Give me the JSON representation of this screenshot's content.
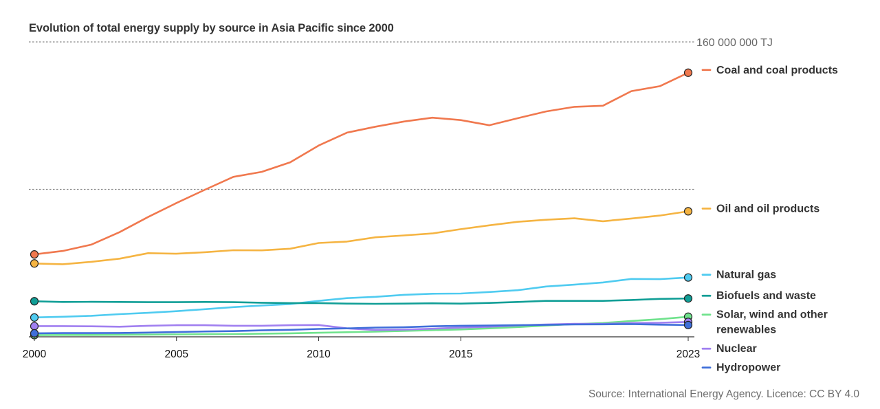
{
  "chart_data": {
    "type": "line",
    "title": "Evolution of total energy supply by source in Asia Pacific since 2000",
    "y_unit": "TJ",
    "y_max_label": "160 000 000 TJ",
    "ylim": [
      0,
      160000000
    ],
    "xlim": [
      2000,
      2023
    ],
    "x_ticks": [
      "2000",
      "2005",
      "2010",
      "2015",
      "2023"
    ],
    "grid": "horizontal dotted lines at 80 000 000 and 160 000 000",
    "legend": "right, labels beside line ends",
    "x": [
      2000,
      2001,
      2002,
      2003,
      2004,
      2005,
      2006,
      2007,
      2008,
      2009,
      2010,
      2011,
      2012,
      2013,
      2014,
      2015,
      2016,
      2017,
      2018,
      2019,
      2020,
      2021,
      2022,
      2023
    ],
    "series": [
      {
        "name": "Coal and coal products",
        "color": "#f0784e",
        "values": [
          44700000,
          46600000,
          50000000,
          56800000,
          65000000,
          72600000,
          79800000,
          86800000,
          89500000,
          94700000,
          103800000,
          110800000,
          114000000,
          116800000,
          118900000,
          117600000,
          114800000,
          118600000,
          122300000,
          124800000,
          125400000,
          133300000,
          136000000,
          143300000
        ]
      },
      {
        "name": "Oil and oil products",
        "color": "#f5b442",
        "values": [
          39800000,
          39400000,
          40700000,
          42400000,
          45400000,
          45100000,
          45900000,
          47000000,
          46900000,
          47800000,
          50900000,
          51700000,
          54000000,
          55000000,
          56100000,
          58400000,
          60500000,
          62400000,
          63500000,
          64300000,
          62700000,
          64200000,
          65800000,
          68100000
        ]
      },
      {
        "name": "Natural gas",
        "color": "#4fcbf0",
        "values": [
          10500000,
          10900000,
          11400000,
          12300000,
          13000000,
          13900000,
          15000000,
          16100000,
          17000000,
          17800000,
          19500000,
          21000000,
          21700000,
          22800000,
          23400000,
          23500000,
          24300000,
          25300000,
          27300000,
          28300000,
          29500000,
          31400000,
          31300000,
          32200000
        ]
      },
      {
        "name": "Biofuels and waste",
        "color": "#109e96",
        "values": [
          19300000,
          18900000,
          19000000,
          18900000,
          18800000,
          18800000,
          18900000,
          18800000,
          18500000,
          18300000,
          18300000,
          18000000,
          17900000,
          18000000,
          18200000,
          18000000,
          18400000,
          18900000,
          19500000,
          19500000,
          19500000,
          20000000,
          20600000,
          20800000
        ]
      },
      {
        "name": "Solar, wind and other renewables",
        "color": "#6fe28c",
        "values": [
          900000,
          1000000,
          1000000,
          1100000,
          1200000,
          1300000,
          1400000,
          1500000,
          1700000,
          1900000,
          2200000,
          2500000,
          2800000,
          3200000,
          3600000,
          4000000,
          4600000,
          5300000,
          6100000,
          6900000,
          7500000,
          8600000,
          9600000,
          10900000
        ]
      },
      {
        "name": "Nuclear",
        "color": "#a07ff0",
        "values": [
          5800000,
          5800000,
          5700000,
          5500000,
          6000000,
          6300000,
          6300000,
          6000000,
          6000000,
          6300000,
          6400000,
          4600000,
          3700000,
          3900000,
          4400000,
          5000000,
          5500000,
          6200000,
          6700000,
          7100000,
          7000000,
          7500000,
          7600000,
          8100000
        ]
      },
      {
        "name": "Hydropower",
        "color": "#3f6fd9",
        "values": [
          1900000,
          2000000,
          2000000,
          2100000,
          2300000,
          2600000,
          2900000,
          3100000,
          3500000,
          3800000,
          4300000,
          4600000,
          5000000,
          5200000,
          5700000,
          6000000,
          6100000,
          6300000,
          6500000,
          6700000,
          6800000,
          6900000,
          6600000,
          6400000
        ]
      }
    ]
  },
  "source": "Source: International Energy Agency. Licence: CC BY 4.0"
}
